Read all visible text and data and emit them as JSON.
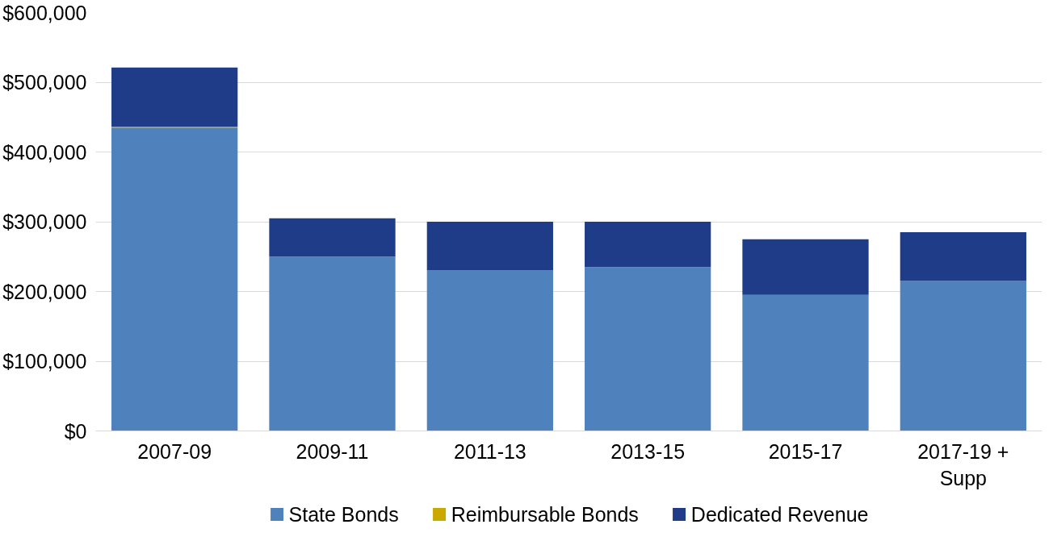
{
  "chart_data": {
    "type": "bar",
    "stacked": true,
    "categories": [
      "2007-09",
      "2009-11",
      "2011-13",
      "2013-15",
      "2015-17",
      "2017-19 + Supp"
    ],
    "series": [
      {
        "name": "State Bonds",
        "color": "#4f81bd",
        "values": [
          435000,
          250000,
          230000,
          235000,
          195000,
          215000
        ]
      },
      {
        "name": "Reimbursable Bonds",
        "color": "#c9a800",
        "values": [
          1000,
          0,
          0,
          0,
          0,
          0
        ]
      },
      {
        "name": "Dedicated Revenue",
        "color": "#1f3c88",
        "values": [
          85000,
          55000,
          70000,
          65000,
          80000,
          70000
        ]
      }
    ],
    "ylim": [
      0,
      600000
    ],
    "yticks": [
      {
        "value": 0,
        "label": "$0"
      },
      {
        "value": 100000,
        "label": "$100,000"
      },
      {
        "value": 200000,
        "label": "$200,000"
      },
      {
        "value": 300000,
        "label": "$300,000"
      },
      {
        "value": 400000,
        "label": "$400,000"
      },
      {
        "value": 500000,
        "label": "$500,000"
      },
      {
        "value": 600000,
        "label": "$600,000"
      }
    ],
    "grid": "y",
    "legend": "bottom"
  }
}
